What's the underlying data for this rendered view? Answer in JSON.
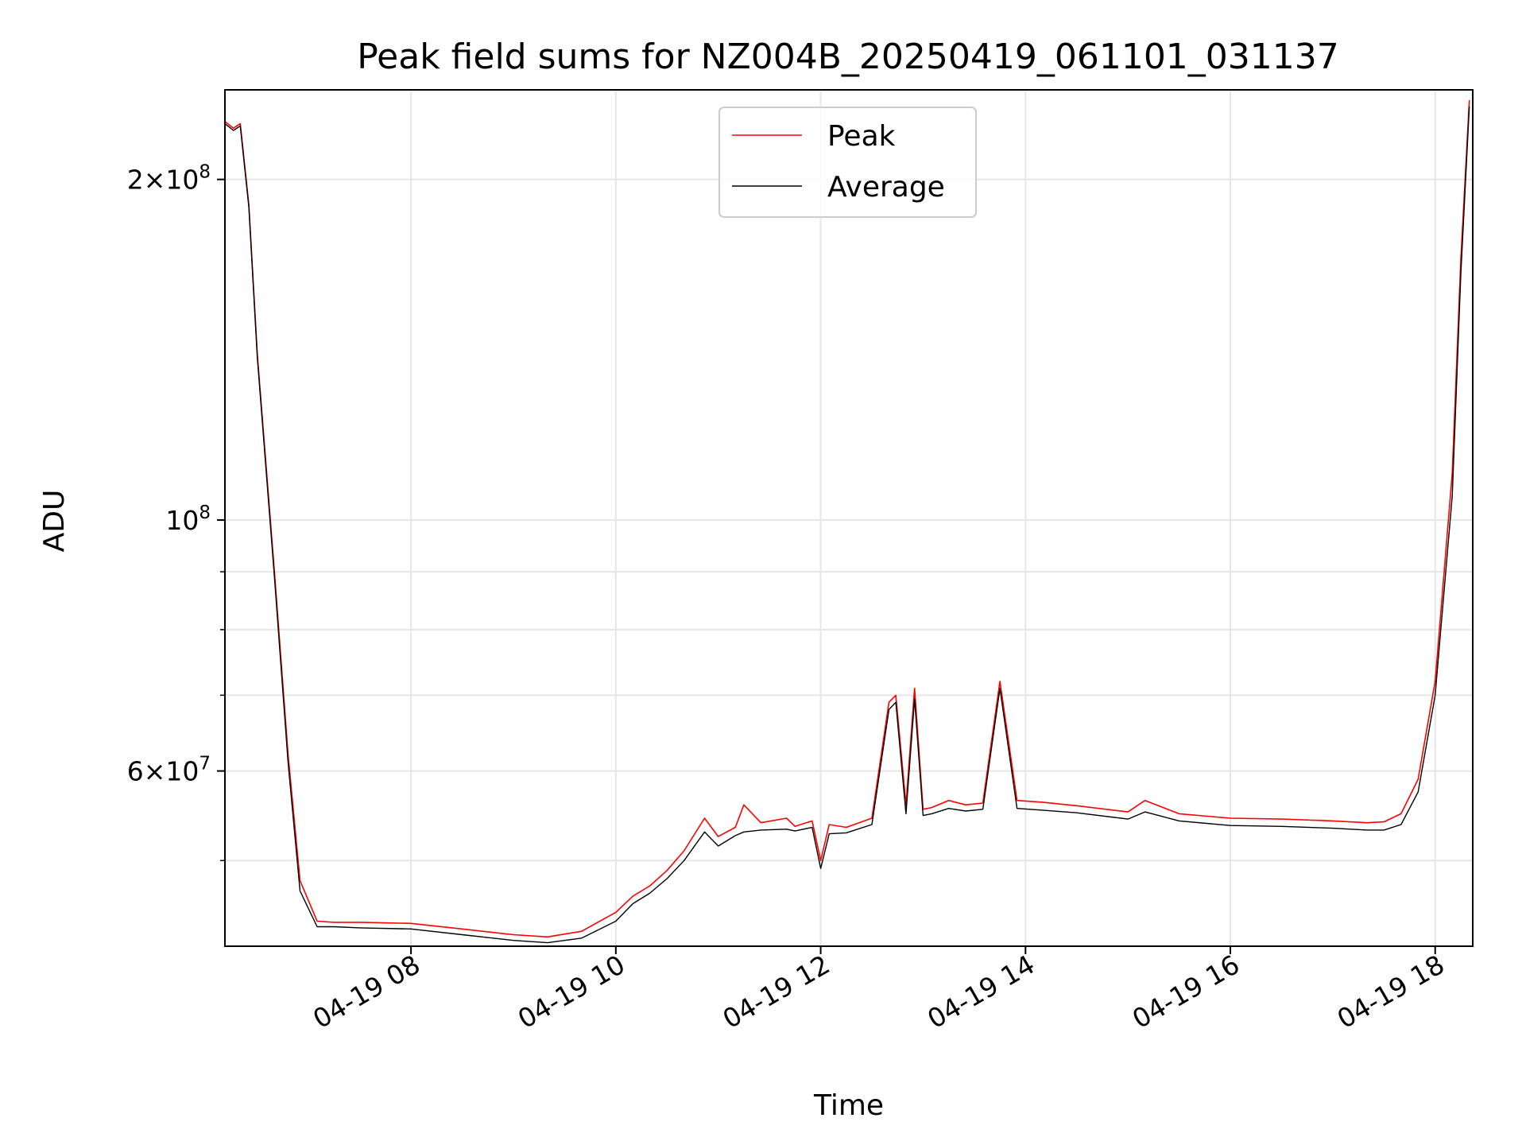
{
  "chart_data": {
    "type": "line",
    "title": "Peak field sums for NZ004B_20250419_061101_031137",
    "xlabel": "Time",
    "ylabel": "ADU",
    "yscale": "log",
    "grid": true,
    "legend_position": "top-center",
    "xlim": [
      "04-19 06:11",
      "04-19 18:22"
    ],
    "ylim": [
      42000000,
      240000000
    ],
    "x_ticks": [
      "04-19 08",
      "04-19 10",
      "04-19 12",
      "04-19 14",
      "04-19 16",
      "04-19 18"
    ],
    "x_tick_values": [
      "04-19 08:00",
      "04-19 10:00",
      "04-19 12:00",
      "04-19 14:00",
      "04-19 16:00",
      "04-19 18:00"
    ],
    "y_ticks": [
      {
        "value": 200000000,
        "mantissa": "2",
        "exp": "8"
      },
      {
        "value": 100000000,
        "mantissa": "",
        "exp": "8"
      },
      {
        "value": 60000000,
        "mantissa": "6",
        "exp": "7"
      }
    ],
    "y_minor_ticks": [
      50000000,
      70000000,
      80000000,
      90000000
    ],
    "series": [
      {
        "name": "Peak",
        "color": "#ff0000",
        "x": [
          "04-19 06:11",
          "04-19 06:16",
          "04-19 06:20",
          "04-19 06:25",
          "04-19 06:30",
          "04-19 06:40",
          "04-19 06:48",
          "04-19 06:55",
          "04-19 07:05",
          "04-19 07:15",
          "04-19 07:30",
          "04-19 08:00",
          "04-19 08:30",
          "04-19 09:00",
          "04-19 09:20",
          "04-19 09:40",
          "04-19 10:00",
          "04-19 10:10",
          "04-19 10:20",
          "04-19 10:30",
          "04-19 10:40",
          "04-19 10:52",
          "04-19 11:00",
          "04-19 11:10",
          "04-19 11:15",
          "04-19 11:25",
          "04-19 11:40",
          "04-19 11:45",
          "04-19 11:55",
          "04-19 12:00",
          "04-19 12:05",
          "04-19 12:15",
          "04-19 12:30",
          "04-19 12:40",
          "04-19 12:44",
          "04-19 12:50",
          "04-19 12:55",
          "04-19 13:00",
          "04-19 13:05",
          "04-19 13:15",
          "04-19 13:25",
          "04-19 13:35",
          "04-19 13:45",
          "04-19 13:55",
          "04-19 14:10",
          "04-19 14:30",
          "04-19 15:00",
          "04-19 15:10",
          "04-19 15:30",
          "04-19 16:00",
          "04-19 16:30",
          "04-19 17:00",
          "04-19 17:20",
          "04-19 17:30",
          "04-19 17:40",
          "04-19 17:50",
          "04-19 18:00",
          "04-19 18:10",
          "04-19 18:15",
          "04-19 18:20"
        ],
        "y": [
          225000000,
          222000000,
          224000000,
          190000000,
          140000000,
          90000000,
          62000000,
          48000000,
          44200000,
          44100000,
          44100000,
          44000000,
          43500000,
          43000000,
          42800000,
          43300000,
          45000000,
          46500000,
          47500000,
          49000000,
          51000000,
          54500000,
          52500000,
          53500000,
          56000000,
          54000000,
          54500000,
          53600000,
          54200000,
          50000000,
          53800000,
          53500000,
          54500000,
          69000000,
          70000000,
          56000000,
          71000000,
          55500000,
          55700000,
          56500000,
          56000000,
          56200000,
          72000000,
          56500000,
          56300000,
          55900000,
          55200000,
          56500000,
          55000000,
          54500000,
          54400000,
          54200000,
          54000000,
          54100000,
          55000000,
          59000000,
          72000000,
          110000000,
          170000000,
          235000000
        ]
      },
      {
        "name": "Average",
        "color": "#000000",
        "x": [
          "04-19 06:11",
          "04-19 06:16",
          "04-19 06:20",
          "04-19 06:25",
          "04-19 06:30",
          "04-19 06:40",
          "04-19 06:48",
          "04-19 06:55",
          "04-19 07:05",
          "04-19 07:15",
          "04-19 07:30",
          "04-19 08:00",
          "04-19 08:30",
          "04-19 09:00",
          "04-19 09:20",
          "04-19 09:40",
          "04-19 10:00",
          "04-19 10:10",
          "04-19 10:20",
          "04-19 10:30",
          "04-19 10:40",
          "04-19 10:52",
          "04-19 11:00",
          "04-19 11:10",
          "04-19 11:15",
          "04-19 11:25",
          "04-19 11:40",
          "04-19 11:45",
          "04-19 11:55",
          "04-19 12:00",
          "04-19 12:05",
          "04-19 12:15",
          "04-19 12:30",
          "04-19 12:40",
          "04-19 12:44",
          "04-19 12:50",
          "04-19 12:55",
          "04-19 13:00",
          "04-19 13:05",
          "04-19 13:15",
          "04-19 13:25",
          "04-19 13:35",
          "04-19 13:45",
          "04-19 13:55",
          "04-19 14:10",
          "04-19 14:30",
          "04-19 15:00",
          "04-19 15:10",
          "04-19 15:30",
          "04-19 16:00",
          "04-19 16:30",
          "04-19 17:00",
          "04-19 17:20",
          "04-19 17:30",
          "04-19 17:40",
          "04-19 17:50",
          "04-19 18:00",
          "04-19 18:10",
          "04-19 18:15",
          "04-19 18:20"
        ],
        "y": [
          224000000,
          221000000,
          223000000,
          189000000,
          139000000,
          89000000,
          61000000,
          47000000,
          43700000,
          43700000,
          43600000,
          43500000,
          43000000,
          42500000,
          42300000,
          42700000,
          44200000,
          45800000,
          46800000,
          48200000,
          50000000,
          53000000,
          51500000,
          52600000,
          53000000,
          53200000,
          53300000,
          53100000,
          53500000,
          49200000,
          52800000,
          52900000,
          53800000,
          68000000,
          69000000,
          55000000,
          69500000,
          54800000,
          55000000,
          55600000,
          55300000,
          55500000,
          71000000,
          55600000,
          55400000,
          55100000,
          54400000,
          55200000,
          54200000,
          53700000,
          53600000,
          53400000,
          53200000,
          53200000,
          53800000,
          57500000,
          70000000,
          105000000,
          165000000,
          232000000
        ]
      }
    ]
  }
}
